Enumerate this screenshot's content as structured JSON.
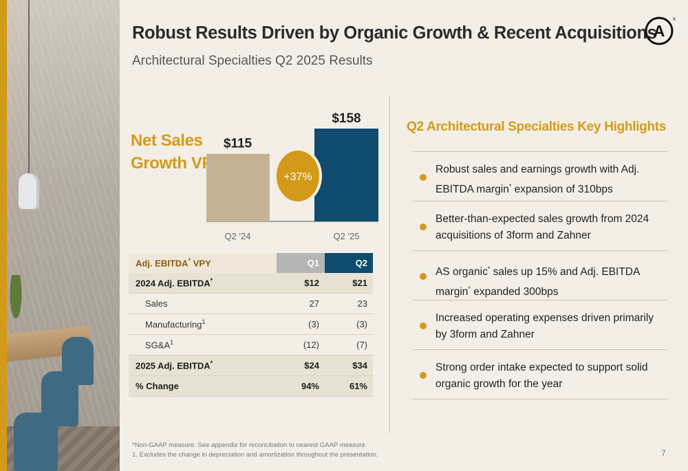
{
  "slide": {
    "title": "Robust Results Driven by Organic Growth & Recent Acquisitions",
    "subtitle": "Architectural Specialties Q2 2025 Results",
    "page_number": "7"
  },
  "net_sales": {
    "heading_line1": "Net Sales",
    "heading_line2": "Growth VPY"
  },
  "chart_data": {
    "type": "bar",
    "categories": [
      "Q2 '24",
      "Q2 '25"
    ],
    "values": [
      115,
      158
    ],
    "value_labels": [
      "$115",
      "$158"
    ],
    "growth_badge": "+37%",
    "colors": [
      "#c6b396",
      "#0f4c6e"
    ],
    "badge_color": "#d39a1a"
  },
  "ebitda_table": {
    "header": {
      "label": "Adj. EBITDA",
      "label_suffix": " VPY",
      "col1": "Q1",
      "col2": "Q2"
    },
    "rows": [
      {
        "label": "2024 Adj. EBITDA",
        "mark": "*",
        "q1": "$12",
        "q2": "$21",
        "style": "shaded"
      },
      {
        "label": "Sales",
        "mark": "",
        "q1": "27",
        "q2": "23",
        "style": "plain"
      },
      {
        "label": "Manufacturing",
        "mark": "1",
        "q1": "(3)",
        "q2": "(3)",
        "style": "plain"
      },
      {
        "label": "SG&A",
        "mark": "1",
        "q1": "(12)",
        "q2": "(7)",
        "style": "plain"
      },
      {
        "label": "2025 Adj. EBITDA",
        "mark": "*",
        "q1": "$24",
        "q2": "$34",
        "style": "shaded"
      },
      {
        "label": "% Change",
        "mark": "",
        "q1": "94%",
        "q2": "61%",
        "style": "shaded"
      }
    ]
  },
  "highlights": {
    "title": "Q2 Architectural Specialties Key Highlights",
    "items": [
      {
        "a": "Robust sales and earnings growth with Adj. EBITDA margin",
        "mark": "*",
        "b": " expansion of 310bps"
      },
      {
        "a": "Better-than-expected sales growth from 2024 acquisitions of 3form and Zahner",
        "mark": "",
        "b": ""
      },
      {
        "a": "AS organic",
        "mark": "*",
        "b": " sales up 15% and Adj. EBITDA margin",
        "mark2": "*",
        "c": " expanded 300bps"
      },
      {
        "a": "Increased operating expenses driven primarily by 3form and Zahner",
        "mark": "",
        "b": ""
      },
      {
        "a": "Strong order intake expected to support solid organic growth for the year",
        "mark": "",
        "b": ""
      }
    ]
  },
  "footnotes": {
    "line1": "*Non-GAAP measure. See appendix for reconciliation to nearest GAAP measure.",
    "line2": "1. Excludes the change in depreciation and amortization throughout the presentation."
  },
  "logo": {
    "icon": "armstrong-a-logo",
    "letter": "A",
    "trademark": "®"
  },
  "colors": {
    "accent": "#d39a1a",
    "navy": "#0f4c6e",
    "tan": "#c6b396",
    "background": "#f3efe6"
  }
}
